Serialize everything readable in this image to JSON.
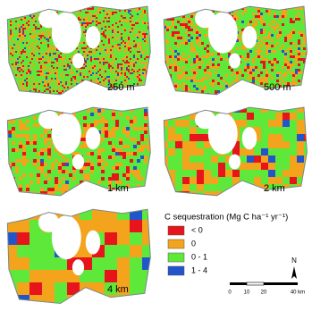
{
  "panels": [
    {
      "label": "250 m"
    },
    {
      "label": "500 m"
    },
    {
      "label": "1 km"
    },
    {
      "label": "2 km"
    },
    {
      "label": "4 km"
    }
  ],
  "legend": {
    "title": "C sequestration (Mg C ha⁻¹ yr⁻¹)",
    "items": [
      {
        "label": "< 0",
        "color": "#e8141c"
      },
      {
        "label": "0",
        "color": "#f4a31c"
      },
      {
        "label": "0 - 1",
        "color": "#5ee83a"
      },
      {
        "label": "1 - 4",
        "color": "#2255cc"
      }
    ]
  },
  "north": "N",
  "scale_bar": {
    "labels": [
      "0",
      "10",
      "20",
      "40 km"
    ]
  }
}
